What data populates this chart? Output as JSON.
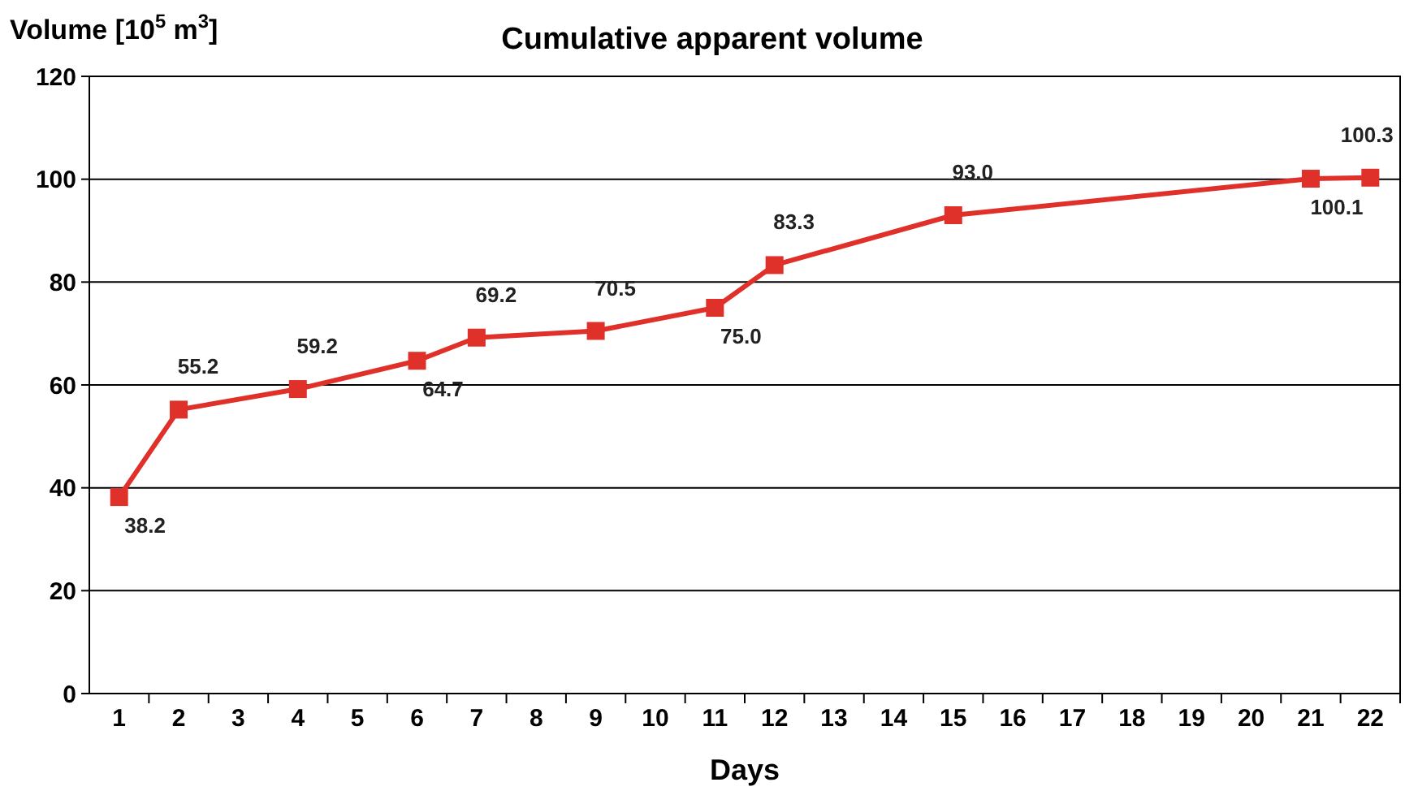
{
  "chart_data": {
    "type": "line",
    "title": "Cumulative apparent volume",
    "xlabel": "Days",
    "ylabel": "Volume [10$^{5}$ m$^{3}$]",
    "x": [
      1,
      2,
      4,
      6,
      7,
      9,
      11,
      12,
      15,
      21,
      22
    ],
    "series": [
      {
        "color": "#e0302a",
        "values": [
          38.2,
          55.2,
          59.2,
          64.7,
          69.2,
          70.5,
          75.0,
          83.3,
          93.0,
          100.1,
          100.3
        ],
        "value_labels": [
          "38.2",
          "55.2",
          "59.2",
          "64.7",
          "69.2",
          "70.5",
          "75.0",
          "83.3",
          "93.0",
          "100.1",
          "100.3"
        ]
      }
    ],
    "xlim": [
      0.5,
      22.5
    ],
    "xticks": [
      1,
      2,
      3,
      4,
      5,
      6,
      7,
      8,
      9,
      10,
      11,
      12,
      13,
      14,
      15,
      16,
      17,
      18,
      19,
      20,
      21,
      22
    ],
    "ylim": [
      0,
      120
    ],
    "yticks": [
      0,
      20,
      40,
      60,
      80,
      100,
      120
    ],
    "grid": "y",
    "marker": "square",
    "line_style": "solid"
  }
}
